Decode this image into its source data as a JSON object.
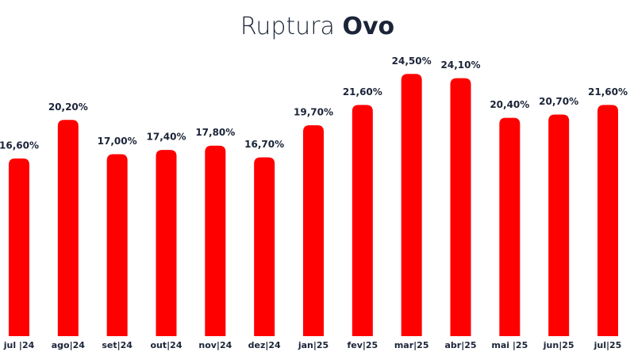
{
  "chart_data": {
    "type": "bar",
    "title": "Ruptura",
    "title_highlight": "Ovo",
    "categories": [
      "jul |24",
      "ago|24",
      "set|24",
      "out|24",
      "nov|24",
      "dez|24",
      "jan|25",
      "fev|25",
      "mar|25",
      "abr|25",
      "mai |25",
      "jun|25",
      "jul|25"
    ],
    "values": [
      16.6,
      20.2,
      17.0,
      17.4,
      17.8,
      16.7,
      19.7,
      21.6,
      24.5,
      24.1,
      20.4,
      20.7,
      21.6
    ],
    "value_labels": [
      "16,60%",
      "20,20%",
      "17,00%",
      "17,40%",
      "17,80%",
      "16,70%",
      "19,70%",
      "21,60%",
      "24,50%",
      "24,10%",
      "20,40%",
      "20,70%",
      "21,60%"
    ],
    "color": "#ff0000"
  }
}
